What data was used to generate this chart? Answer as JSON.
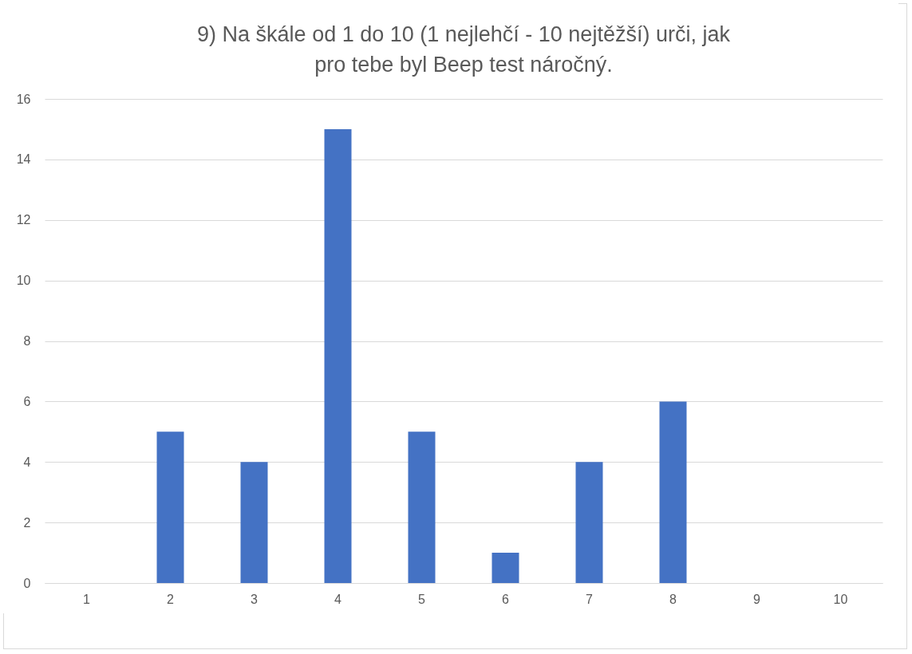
{
  "chart_data": {
    "type": "bar",
    "title": "9) Na škále od 1 do 10 (1 nejlehčí - 10 nejtěžší) urči, jak\npro tebe byl Beep test náročný.",
    "categories": [
      "1",
      "2",
      "3",
      "4",
      "5",
      "6",
      "7",
      "8",
      "9",
      "10"
    ],
    "values": [
      0,
      5,
      4,
      15,
      5,
      1,
      4,
      6,
      0,
      0
    ],
    "color": "#4472c4",
    "ylim": [
      0,
      16
    ],
    "yticks": [
      0,
      2,
      4,
      6,
      8,
      10,
      12,
      14,
      16
    ],
    "grid": "y"
  }
}
